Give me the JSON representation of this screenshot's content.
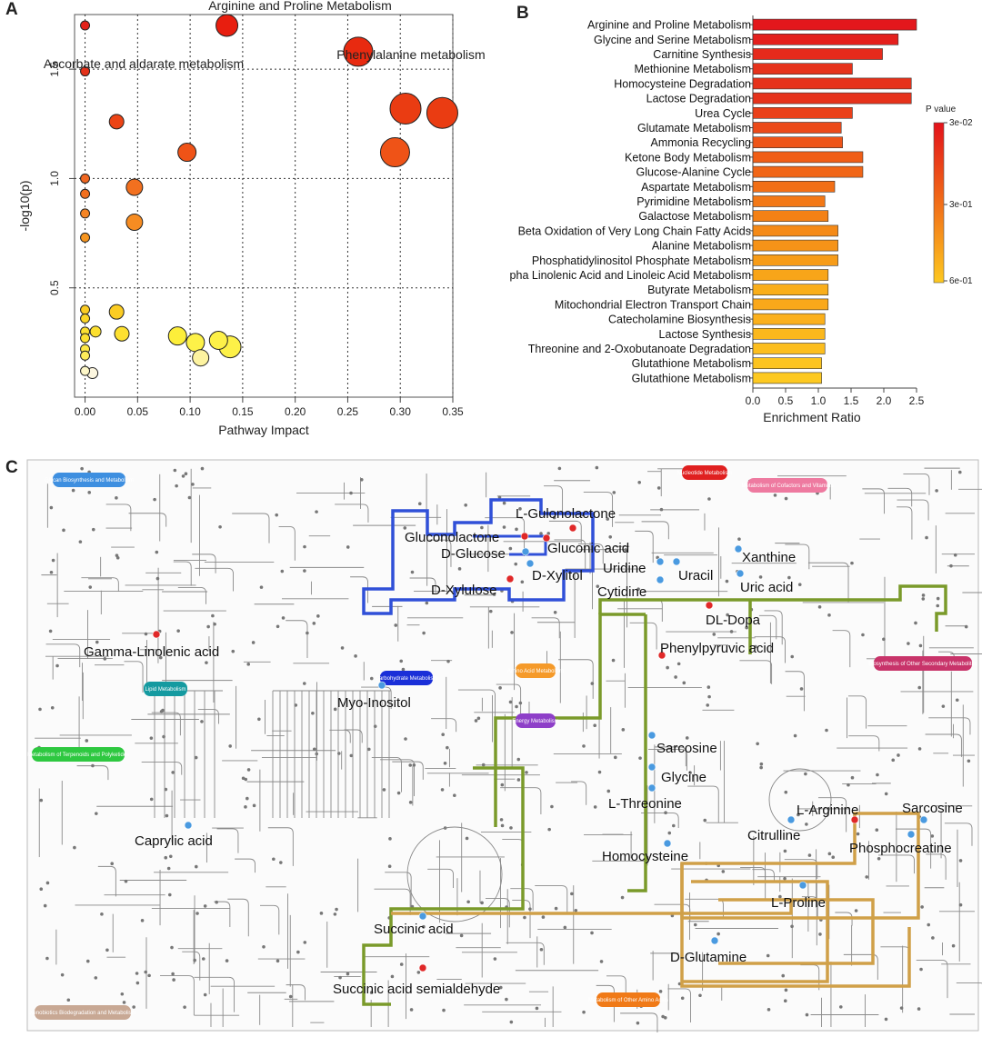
{
  "chart_data": [
    {
      "panel": "A",
      "type": "scatter",
      "xlabel": "Pathway Impact",
      "ylabel": "-log10(p)",
      "xlim": [
        -0.01,
        0.35
      ],
      "ylim": [
        0.0,
        1.75
      ],
      "xticks": [
        "0.00",
        "0.05",
        "0.10",
        "0.15",
        "0.20",
        "0.25",
        "0.30",
        "0.35"
      ],
      "yticks": [
        "0.5",
        "1.0",
        "1.5"
      ],
      "grid": true,
      "points": [
        {
          "x": 0.135,
          "y": 1.78,
          "size": 12,
          "color": "#e81e0f",
          "label": "Arginine and Proline Metabolism"
        },
        {
          "x": 0.26,
          "y": 1.58,
          "size": 16,
          "color": "#e82a10",
          "label": "Phenylalanine metabolism"
        },
        {
          "x": 0.0,
          "y": 1.7,
          "size": 5,
          "color": "#e3221a",
          "label": "Ascorbate and aldarate metabolism"
        },
        {
          "x": 0.0,
          "y": 1.49,
          "size": 5,
          "color": "#e3321a",
          "label": ""
        },
        {
          "x": 0.03,
          "y": 1.26,
          "size": 8,
          "color": "#ec4416",
          "label": ""
        },
        {
          "x": 0.305,
          "y": 1.32,
          "size": 17,
          "color": "#ea3c12",
          "label": ""
        },
        {
          "x": 0.34,
          "y": 1.3,
          "size": 17,
          "color": "#ea3c12",
          "label": ""
        },
        {
          "x": 0.295,
          "y": 1.12,
          "size": 16,
          "color": "#ef5317",
          "label": ""
        },
        {
          "x": 0.097,
          "y": 1.12,
          "size": 10,
          "color": "#ef5317",
          "label": ""
        },
        {
          "x": 0.0,
          "y": 1.0,
          "size": 5,
          "color": "#f06822",
          "label": ""
        },
        {
          "x": 0.0,
          "y": 0.93,
          "size": 5,
          "color": "#f2701f",
          "label": ""
        },
        {
          "x": 0.047,
          "y": 0.96,
          "size": 9,
          "color": "#f2701f",
          "label": ""
        },
        {
          "x": 0.0,
          "y": 0.84,
          "size": 5,
          "color": "#f48424",
          "label": ""
        },
        {
          "x": 0.047,
          "y": 0.8,
          "size": 9,
          "color": "#f68c22",
          "label": ""
        },
        {
          "x": 0.0,
          "y": 0.73,
          "size": 5,
          "color": "#f6951f",
          "label": ""
        },
        {
          "x": 0.0,
          "y": 0.4,
          "size": 5,
          "color": "#fbcc23",
          "label": ""
        },
        {
          "x": 0.0,
          "y": 0.36,
          "size": 5,
          "color": "#fcd625",
          "label": ""
        },
        {
          "x": 0.03,
          "y": 0.39,
          "size": 8,
          "color": "#fbcc23",
          "label": ""
        },
        {
          "x": 0.0,
          "y": 0.3,
          "size": 5,
          "color": "#fde030",
          "label": ""
        },
        {
          "x": 0.01,
          "y": 0.3,
          "size": 6,
          "color": "#fde030",
          "label": ""
        },
        {
          "x": 0.0,
          "y": 0.27,
          "size": 5,
          "color": "#fde030",
          "label": ""
        },
        {
          "x": 0.035,
          "y": 0.29,
          "size": 8,
          "color": "#fde030",
          "label": ""
        },
        {
          "x": 0.0,
          "y": 0.22,
          "size": 5,
          "color": "#fde845",
          "label": ""
        },
        {
          "x": 0.0,
          "y": 0.19,
          "size": 5,
          "color": "#fdec5a",
          "label": ""
        },
        {
          "x": 0.088,
          "y": 0.28,
          "size": 10,
          "color": "#fdee3a",
          "label": ""
        },
        {
          "x": 0.105,
          "y": 0.25,
          "size": 10,
          "color": "#fdf148",
          "label": ""
        },
        {
          "x": 0.127,
          "y": 0.26,
          "size": 10,
          "color": "#fdf148",
          "label": ""
        },
        {
          "x": 0.138,
          "y": 0.23,
          "size": 12,
          "color": "#fdf148",
          "label": ""
        },
        {
          "x": 0.11,
          "y": 0.18,
          "size": 9,
          "color": "#fdf3a0",
          "label": ""
        },
        {
          "x": 0.0,
          "y": 0.12,
          "size": 5,
          "color": "#fdf7c8",
          "label": ""
        },
        {
          "x": 0.007,
          "y": 0.11,
          "size": 6,
          "color": "#fdf7e0",
          "label": ""
        }
      ]
    },
    {
      "panel": "B",
      "type": "bar",
      "orientation": "horizontal",
      "xlabel": "Enrichment Ratio",
      "xlim": [
        0.0,
        2.5
      ],
      "xticks": [
        "0.0",
        "0.5",
        "1.0",
        "1.5",
        "2.0",
        "2.5"
      ],
      "legend_title": "P value",
      "legend_ticks": [
        "3e-02",
        "3e-01",
        "6e-01"
      ],
      "categories": [
        "Arginine and Proline Metabolism",
        "Glycine and Serine Metabolism",
        "Carnitine Synthesis",
        "Methionine Metabolism",
        "Homocysteine Degradation",
        "Lactose Degradation",
        "Urea Cycle",
        "Glutamate Metabolism",
        "Ammonia Recycling",
        "Ketone Body Metabolism",
        "Glucose-Alanine Cycle",
        "Aspartate Metabolism",
        "Pyrimidine Metabolism",
        "Galactose Metabolism",
        "Beta Oxidation of Very Long Chain Fatty Acids",
        "Alanine Metabolism",
        "Phosphatidylinositol Phosphate Metabolism",
        "Alpha Linolenic Acid and Linoleic Acid Metabolism",
        "Butyrate Metabolism",
        "Mitochondrial Electron Transport Chain",
        "Catecholamine Biosynthesis",
        "Lactose Synthesis",
        "Threonine and 2-Oxobutanoate Degradation",
        "Glutathione Metabolism",
        "Glutathione Metabolism"
      ],
      "values": [
        2.5,
        2.22,
        1.98,
        1.52,
        2.42,
        2.42,
        1.52,
        1.35,
        1.37,
        1.68,
        1.68,
        1.25,
        1.1,
        1.15,
        1.3,
        1.3,
        1.3,
        1.15,
        1.15,
        1.15,
        1.1,
        1.1,
        1.1,
        1.05,
        1.05
      ],
      "colors": [
        "#e3171c",
        "#e41f1c",
        "#e62a1c",
        "#e6321b",
        "#e6321b",
        "#e6321b",
        "#ea401a",
        "#ec4a19",
        "#ee5418",
        "#f05e17",
        "#f16617",
        "#f26f16",
        "#f37816",
        "#f48116",
        "#f58a17",
        "#f69318",
        "#f79c18",
        "#f8a519",
        "#f9ae1a",
        "#faa81a",
        "#fbb01b",
        "#fbb81d",
        "#fcbe1e",
        "#fcc420",
        "#fdc921"
      ]
    }
  ],
  "panelA": {
    "letter": "A"
  },
  "panelB": {
    "letter": "B"
  },
  "panelC": {
    "letter": "C",
    "category_pills": [
      {
        "text": "Glycan Biosynthesis and Metabolism",
        "color": "#3e8fe0"
      },
      {
        "text": "Nucleotide Metabolism",
        "color": "#e02020"
      },
      {
        "text": "Metabolism of Cofactors and Vitamins",
        "color": "#ee7aa0"
      },
      {
        "text": "Lipid Metabolism",
        "color": "#149aa0"
      },
      {
        "text": "Carbohydrate Metabolism",
        "color": "#1a2fd8"
      },
      {
        "text": "Amino Acid Metabolism",
        "color": "#f59a2a"
      },
      {
        "text": "Energy Metabolism",
        "color": "#8e3fc8"
      },
      {
        "text": "Biosynthesis of Other Secondary Metabolites",
        "color": "#c8346a"
      },
      {
        "text": "Metabolism of Terpenoids and Polyketides",
        "color": "#2ec840"
      },
      {
        "text": "Metabolism of Other Amino Acids",
        "color": "#f07a18"
      },
      {
        "text": "Xenobiotics Biodegradation and Metabolism",
        "color": "#c8a894"
      }
    ],
    "metabolites": [
      {
        "name": "L-Gulonolactone",
        "dot": "#e02828"
      },
      {
        "name": "Gluconolactone",
        "dot": "#e02828"
      },
      {
        "name": "D-Glucose",
        "dot": "#4a9ae0"
      },
      {
        "name": "Gluconic acid",
        "dot": "#e02828"
      },
      {
        "name": "D-Xylitol",
        "dot": "#4a9ae0"
      },
      {
        "name": "D-Xylulose",
        "dot": "#e02828"
      },
      {
        "name": "Uridine",
        "dot": "#4a9ae0"
      },
      {
        "name": "Uracil",
        "dot": "#4a9ae0"
      },
      {
        "name": "Cytidine",
        "dot": "#4a9ae0"
      },
      {
        "name": "Xanthine",
        "dot": "#4a9ae0"
      },
      {
        "name": "Uric acid",
        "dot": "#4a9ae0"
      },
      {
        "name": "DL-Dopa",
        "dot": "#e02828"
      },
      {
        "name": "Gamma-Linolenic acid",
        "dot": "#e02828"
      },
      {
        "name": "Phenylpyruvic acid",
        "dot": "#e02828"
      },
      {
        "name": "Myo-Inositol",
        "dot": "#4a9ae0"
      },
      {
        "name": "Sarcosine",
        "dot": "#4a9ae0"
      },
      {
        "name": "Glycine",
        "dot": "#4a9ae0"
      },
      {
        "name": "L-Threonine",
        "dot": "#4a9ae0"
      },
      {
        "name": "L-Arginine",
        "dot": "#e02828"
      },
      {
        "name": "Sarcosine",
        "dot": "#4a9ae0"
      },
      {
        "name": "Caprylic acid",
        "dot": "#4a9ae0"
      },
      {
        "name": "Citrulline",
        "dot": "#4a9ae0"
      },
      {
        "name": "Phosphocreatine",
        "dot": "#4a9ae0"
      },
      {
        "name": "Homocysteine",
        "dot": "#4a9ae0"
      },
      {
        "name": "L-Proline",
        "dot": "#4a9ae0"
      },
      {
        "name": "Succinic acid",
        "dot": "#4a9ae0"
      },
      {
        "name": "D-Glutamine",
        "dot": "#4a9ae0"
      },
      {
        "name": "Succinic acid semialdehyde",
        "dot": "#e02828"
      }
    ],
    "highlight_colors": {
      "carbohydrate": "#3050d8",
      "amino_acid": "#7a9a2a",
      "arginine_proline": "#d0a048"
    }
  }
}
